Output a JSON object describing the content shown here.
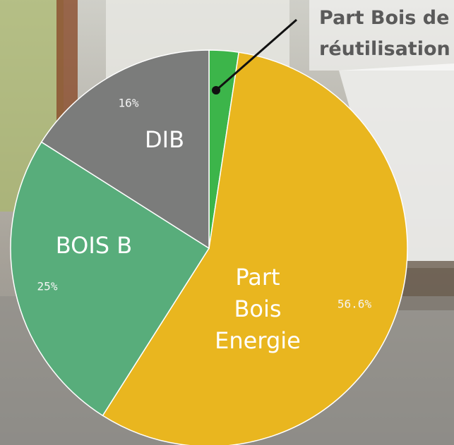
{
  "chart_data": {
    "type": "pie",
    "categories": [
      "Part Bois de réutilisation",
      "Part Bois Energie",
      "BOIS B",
      "DIB"
    ],
    "values": [
      2.4,
      56.6,
      25,
      16
    ],
    "value_labels": [
      null,
      "56.6%",
      "25%",
      "16%"
    ],
    "colors": [
      "#3cb54a",
      "#e9b61f",
      "#58ad7b",
      "#7b7c7b"
    ]
  }
}
